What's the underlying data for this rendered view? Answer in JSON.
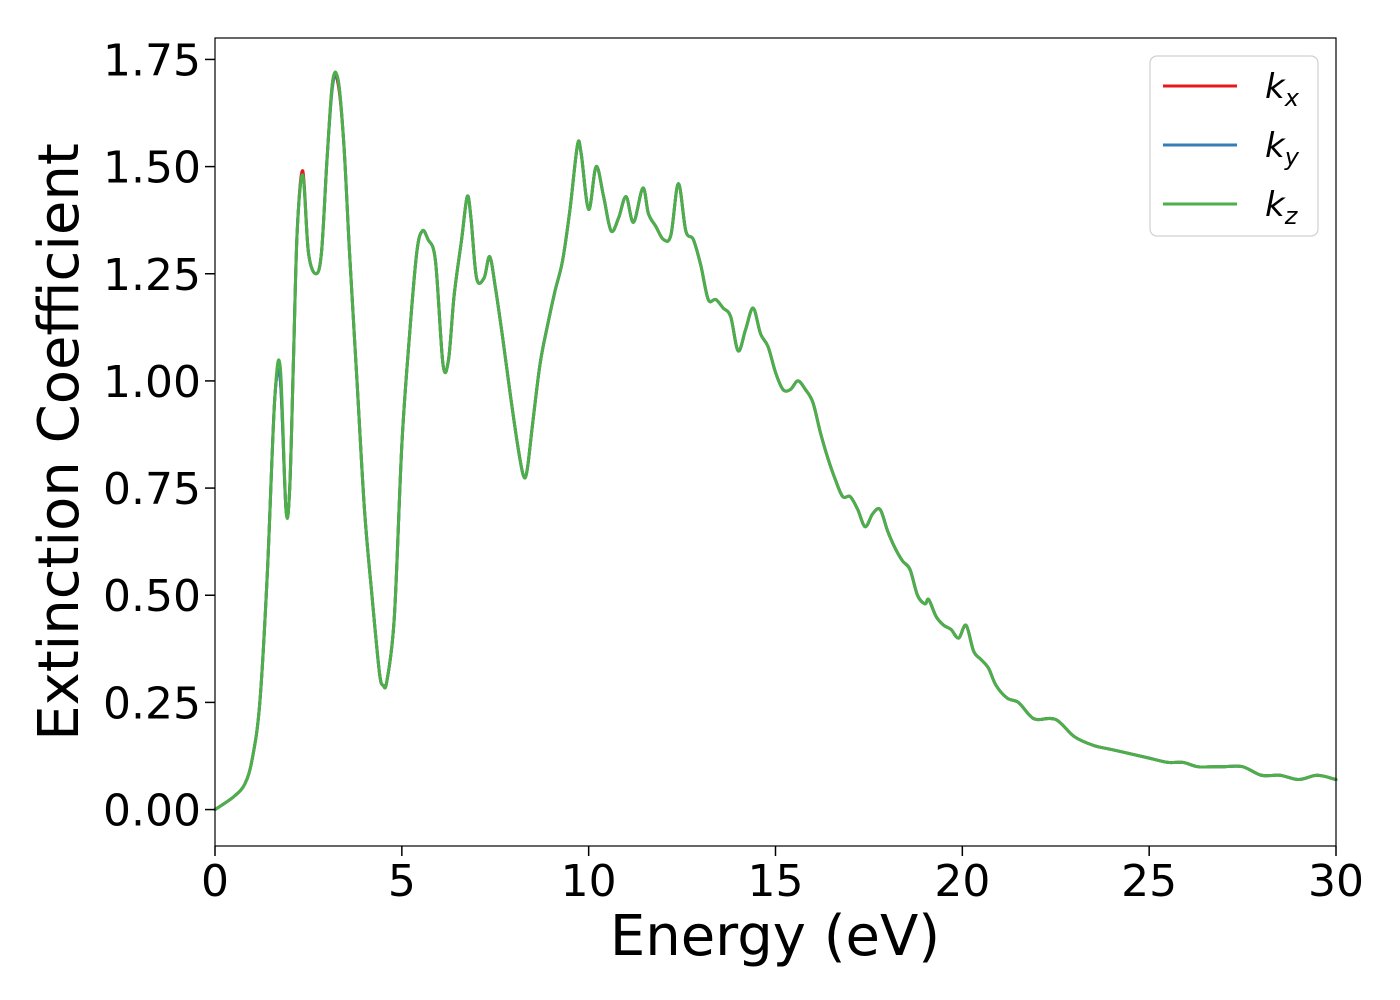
{
  "chart_data": {
    "type": "line",
    "title": "",
    "xlabel": "Energy (eV)",
    "ylabel": "Extinction Coefficient",
    "xlim": [
      0,
      30
    ],
    "ylim": [
      -0.085,
      1.8
    ],
    "xticks": [
      0,
      5,
      10,
      15,
      20,
      25,
      30
    ],
    "xtick_labels": [
      "0",
      "5",
      "10",
      "15",
      "20",
      "25",
      "30"
    ],
    "yticks": [
      0,
      0.25,
      0.5,
      0.75,
      1.0,
      1.25,
      1.5,
      1.75
    ],
    "ytick_labels": [
      "0.00",
      "0.25",
      "0.50",
      "0.75",
      "1.00",
      "1.25",
      "1.50",
      "1.75"
    ],
    "grid": false,
    "legend": {
      "placement": "top-right",
      "entries": [
        {
          "base": "k",
          "sub": "x"
        },
        {
          "base": "k",
          "sub": "y"
        },
        {
          "base": "k",
          "sub": "z"
        }
      ]
    },
    "x": [
      0,
      0.5,
      0.8,
      1.0,
      1.2,
      1.4,
      1.6,
      1.75,
      1.9,
      2.0,
      2.1,
      2.2,
      2.35,
      2.5,
      2.7,
      2.85,
      3.0,
      3.15,
      3.3,
      3.45,
      3.6,
      3.8,
      4.0,
      4.2,
      4.4,
      4.5,
      4.6,
      4.8,
      5.0,
      5.2,
      5.4,
      5.55,
      5.7,
      5.9,
      6.1,
      6.25,
      6.4,
      6.6,
      6.75,
      6.85,
      7.0,
      7.2,
      7.35,
      7.5,
      7.7,
      7.9,
      8.1,
      8.25,
      8.35,
      8.5,
      8.7,
      8.9,
      9.1,
      9.3,
      9.5,
      9.7,
      9.8,
      10.0,
      10.2,
      10.4,
      10.6,
      10.8,
      11.0,
      11.2,
      11.45,
      11.6,
      11.8,
      12.0,
      12.2,
      12.4,
      12.6,
      12.8,
      13.0,
      13.2,
      13.4,
      13.6,
      13.8,
      14.0,
      14.2,
      14.4,
      14.6,
      14.8,
      15.0,
      15.2,
      15.4,
      15.6,
      15.8,
      16.0,
      16.2,
      16.4,
      16.6,
      16.8,
      17.0,
      17.2,
      17.4,
      17.6,
      17.8,
      18.0,
      18.2,
      18.4,
      18.6,
      18.8,
      19.0,
      19.1,
      19.3,
      19.5,
      19.7,
      19.9,
      20.1,
      20.3,
      20.5,
      20.7,
      20.9,
      21.2,
      21.5,
      21.8,
      22.0,
      22.5,
      23.0,
      23.5,
      24.0,
      24.5,
      25.0,
      25.5,
      25.9,
      26.3,
      26.7,
      27.0,
      27.5,
      28.0,
      28.5,
      29.0,
      29.5,
      30.0
    ],
    "series": [
      {
        "name": "k_x",
        "color": "#e41a1c",
        "values": [
          0.0,
          0.03,
          0.06,
          0.12,
          0.25,
          0.55,
          0.96,
          1.0,
          0.7,
          0.75,
          1.05,
          1.35,
          1.49,
          1.3,
          1.25,
          1.3,
          1.52,
          1.7,
          1.69,
          1.55,
          1.3,
          1.0,
          0.7,
          0.5,
          0.32,
          0.29,
          0.3,
          0.45,
          0.85,
          1.1,
          1.3,
          1.35,
          1.33,
          1.28,
          1.04,
          1.05,
          1.2,
          1.33,
          1.43,
          1.38,
          1.24,
          1.24,
          1.29,
          1.22,
          1.1,
          0.97,
          0.85,
          0.78,
          0.79,
          0.9,
          1.04,
          1.13,
          1.21,
          1.28,
          1.4,
          1.55,
          1.53,
          1.4,
          1.5,
          1.43,
          1.35,
          1.38,
          1.43,
          1.37,
          1.45,
          1.39,
          1.36,
          1.33,
          1.34,
          1.46,
          1.35,
          1.33,
          1.27,
          1.19,
          1.19,
          1.17,
          1.15,
          1.07,
          1.12,
          1.17,
          1.11,
          1.08,
          1.02,
          0.98,
          0.98,
          1.0,
          0.98,
          0.95,
          0.88,
          0.82,
          0.77,
          0.73,
          0.73,
          0.7,
          0.66,
          0.69,
          0.7,
          0.65,
          0.61,
          0.58,
          0.56,
          0.5,
          0.48,
          0.49,
          0.45,
          0.43,
          0.42,
          0.4,
          0.43,
          0.37,
          0.35,
          0.33,
          0.29,
          0.26,
          0.25,
          0.22,
          0.21,
          0.21,
          0.17,
          0.15,
          0.14,
          0.13,
          0.12,
          0.11,
          0.11,
          0.1,
          0.1,
          0.1,
          0.1,
          0.08,
          0.08,
          0.07,
          0.08,
          0.07
        ]
      },
      {
        "name": "k_y",
        "color": "#377eb8",
        "values": [
          0.0,
          0.03,
          0.06,
          0.12,
          0.25,
          0.55,
          0.96,
          1.0,
          0.7,
          0.75,
          1.05,
          1.35,
          1.48,
          1.3,
          1.25,
          1.3,
          1.52,
          1.69,
          1.7,
          1.55,
          1.3,
          1.0,
          0.7,
          0.5,
          0.32,
          0.29,
          0.3,
          0.45,
          0.85,
          1.1,
          1.3,
          1.35,
          1.33,
          1.28,
          1.04,
          1.05,
          1.2,
          1.33,
          1.43,
          1.38,
          1.24,
          1.24,
          1.29,
          1.22,
          1.1,
          0.97,
          0.85,
          0.78,
          0.79,
          0.9,
          1.04,
          1.13,
          1.21,
          1.28,
          1.4,
          1.55,
          1.53,
          1.4,
          1.5,
          1.43,
          1.35,
          1.38,
          1.43,
          1.37,
          1.45,
          1.39,
          1.36,
          1.33,
          1.34,
          1.46,
          1.35,
          1.33,
          1.27,
          1.19,
          1.19,
          1.17,
          1.15,
          1.07,
          1.12,
          1.17,
          1.11,
          1.08,
          1.02,
          0.98,
          0.98,
          1.0,
          0.98,
          0.95,
          0.88,
          0.82,
          0.77,
          0.73,
          0.73,
          0.7,
          0.66,
          0.69,
          0.7,
          0.65,
          0.61,
          0.58,
          0.56,
          0.5,
          0.48,
          0.49,
          0.45,
          0.43,
          0.42,
          0.4,
          0.43,
          0.37,
          0.35,
          0.33,
          0.29,
          0.26,
          0.25,
          0.22,
          0.21,
          0.21,
          0.17,
          0.15,
          0.14,
          0.13,
          0.12,
          0.11,
          0.11,
          0.1,
          0.1,
          0.1,
          0.1,
          0.08,
          0.08,
          0.07,
          0.08,
          0.07
        ]
      },
      {
        "name": "k_z",
        "color": "#4daf4a",
        "values": [
          0.0,
          0.03,
          0.06,
          0.12,
          0.25,
          0.55,
          0.96,
          1.03,
          0.7,
          0.75,
          1.05,
          1.35,
          1.48,
          1.3,
          1.25,
          1.3,
          1.52,
          1.7,
          1.7,
          1.55,
          1.3,
          1.0,
          0.7,
          0.5,
          0.32,
          0.29,
          0.3,
          0.45,
          0.85,
          1.1,
          1.3,
          1.35,
          1.33,
          1.28,
          1.04,
          1.05,
          1.2,
          1.33,
          1.43,
          1.38,
          1.24,
          1.24,
          1.29,
          1.22,
          1.1,
          0.97,
          0.85,
          0.78,
          0.79,
          0.9,
          1.04,
          1.13,
          1.21,
          1.28,
          1.4,
          1.55,
          1.53,
          1.4,
          1.5,
          1.43,
          1.35,
          1.38,
          1.43,
          1.37,
          1.45,
          1.39,
          1.36,
          1.33,
          1.34,
          1.46,
          1.35,
          1.33,
          1.27,
          1.19,
          1.19,
          1.17,
          1.15,
          1.07,
          1.12,
          1.17,
          1.11,
          1.08,
          1.02,
          0.98,
          0.98,
          1.0,
          0.98,
          0.95,
          0.88,
          0.82,
          0.77,
          0.73,
          0.73,
          0.7,
          0.66,
          0.69,
          0.7,
          0.65,
          0.61,
          0.58,
          0.56,
          0.5,
          0.48,
          0.49,
          0.45,
          0.43,
          0.42,
          0.4,
          0.43,
          0.37,
          0.35,
          0.33,
          0.29,
          0.26,
          0.25,
          0.22,
          0.21,
          0.21,
          0.17,
          0.15,
          0.14,
          0.13,
          0.12,
          0.11,
          0.11,
          0.1,
          0.1,
          0.1,
          0.1,
          0.08,
          0.08,
          0.07,
          0.08,
          0.07
        ]
      }
    ]
  }
}
